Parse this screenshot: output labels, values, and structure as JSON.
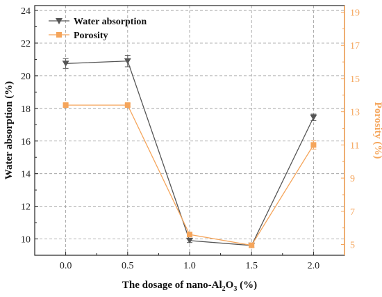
{
  "chart_data": {
    "type": "line",
    "xlabel": "The dosage of nano-Al",
    "xlabel_sub": "2",
    "xlabel_mid": "O",
    "xlabel_sub2": "3",
    "xlabel_tail": " (%)",
    "ylabel_left": "Water absorption (%)",
    "ylabel_right": "Porosity (%)",
    "x": [
      0.0,
      0.5,
      1.0,
      1.5,
      2.0
    ],
    "x_ticks": [
      "0.0",
      "0.5",
      "1.0",
      "1.5",
      "2.0"
    ],
    "xlim": [
      -0.25,
      2.25
    ],
    "y_left_lim": [
      9,
      24.3
    ],
    "y_left_ticks": [
      "10",
      "12",
      "14",
      "16",
      "18",
      "20",
      "22",
      "24"
    ],
    "y_right_lim": [
      4.35,
      19.4
    ],
    "y_right_ticks": [
      "5",
      "7",
      "9",
      "11",
      "13",
      "15",
      "17",
      "19"
    ],
    "grid": true,
    "legend_position": "top-left",
    "series": [
      {
        "name": "Water absorption",
        "axis": "left",
        "marker": "triangle-down",
        "color": "#555555",
        "values": [
          20.75,
          20.9,
          9.9,
          9.6,
          17.45
        ],
        "errors": [
          0.3,
          0.35,
          0.12,
          0.12,
          0.2
        ]
      },
      {
        "name": "Porosity",
        "axis": "right",
        "marker": "square",
        "color": "#F5A55B",
        "values": [
          13.4,
          13.4,
          5.6,
          4.95,
          11.0
        ],
        "errors": [
          0.1,
          0.1,
          0.1,
          0.1,
          0.25
        ]
      }
    ]
  }
}
